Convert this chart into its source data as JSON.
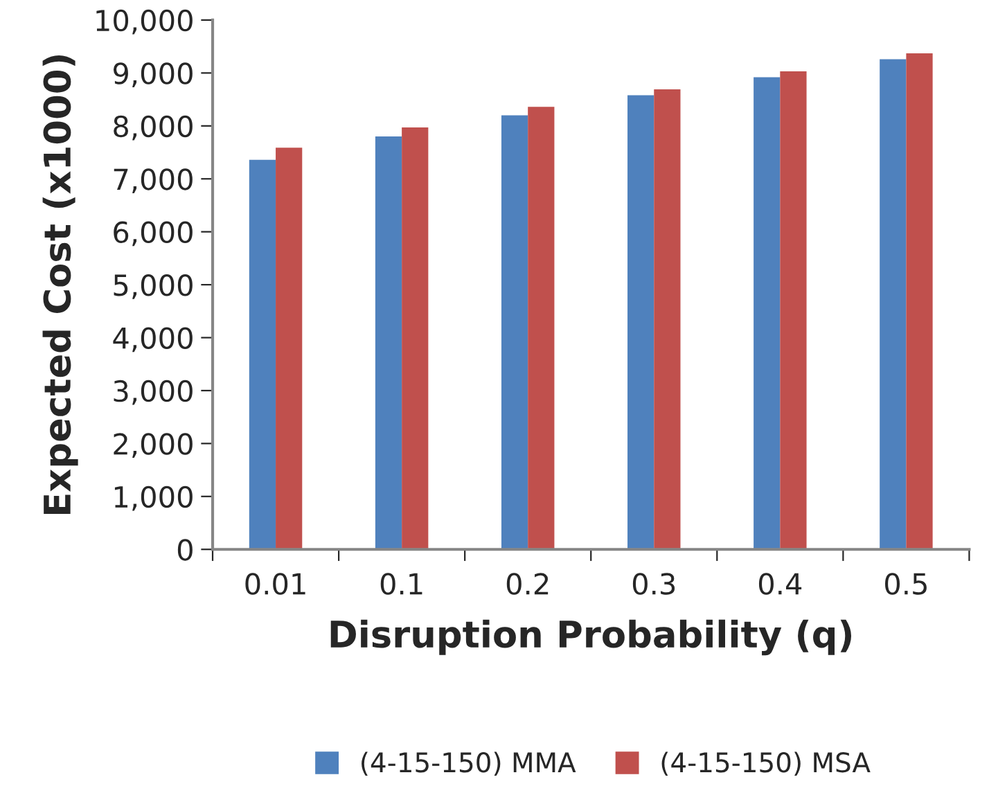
{
  "chart_data": {
    "type": "bar",
    "xlabel": "Disruption Probability (q)",
    "ylabel": "Expected Cost (x1000)",
    "categories": [
      "0.01",
      "0.1",
      "0.2",
      "0.3",
      "0.4",
      "0.5"
    ],
    "series": [
      {
        "name": "(4-15-150) MMA",
        "color": "#4f81bd",
        "values": [
          7360,
          7800,
          8200,
          8580,
          8920,
          9260
        ]
      },
      {
        "name": "(4-15-150) MSA",
        "color": "#c0504d",
        "values": [
          7590,
          7970,
          8360,
          8690,
          9030,
          9370
        ]
      }
    ],
    "ylim": [
      0,
      10000
    ],
    "yticks": [
      {
        "value": 0,
        "label": "0"
      },
      {
        "value": 1000,
        "label": "1,000"
      },
      {
        "value": 2000,
        "label": "2,000"
      },
      {
        "value": 3000,
        "label": "3,000"
      },
      {
        "value": 4000,
        "label": "4,000"
      },
      {
        "value": 5000,
        "label": "5,000"
      },
      {
        "value": 6000,
        "label": "6,000"
      },
      {
        "value": 7000,
        "label": "7,000"
      },
      {
        "value": 8000,
        "label": "8,000"
      },
      {
        "value": 9000,
        "label": "9,000"
      },
      {
        "value": 10000,
        "label": "10,000"
      }
    ],
    "grid": false,
    "legend": "bottom"
  }
}
